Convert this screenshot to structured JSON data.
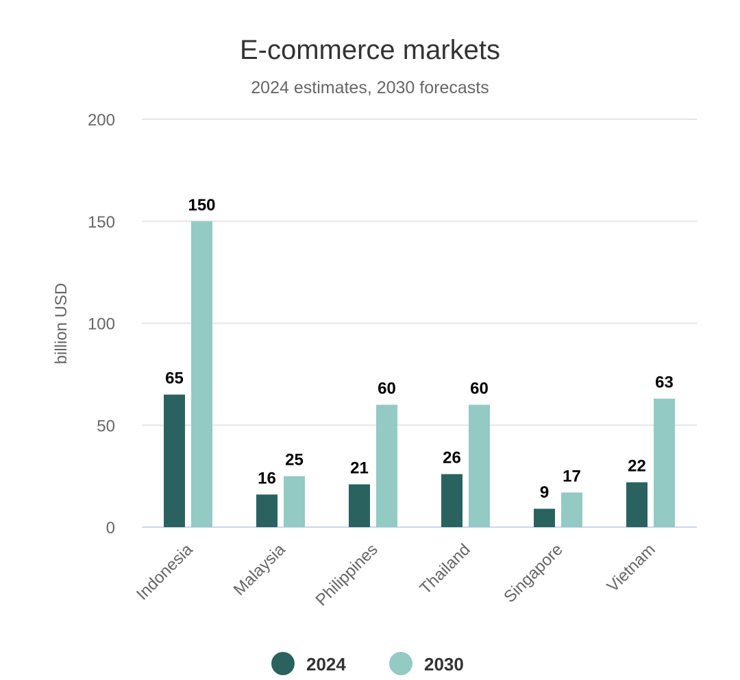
{
  "chart_data": {
    "type": "bar",
    "title": "E-commerce markets",
    "subtitle": "2024 estimates, 2030 forecasts",
    "ylabel": "billion USD",
    "xlabel": "",
    "ylim": [
      0,
      200
    ],
    "yticks": [
      0,
      50,
      100,
      150,
      200
    ],
    "categories": [
      "Indonesia",
      "Malaysia",
      "Philippines",
      "Thailand",
      "Singapore",
      "Vietnam"
    ],
    "series": [
      {
        "name": "2024",
        "color": "#2a625f",
        "values": [
          65,
          16,
          21,
          26,
          9,
          22
        ]
      },
      {
        "name": "2030",
        "color": "#93cac3",
        "values": [
          150,
          25,
          60,
          60,
          17,
          63
        ]
      }
    ],
    "grid": true,
    "legend": "bottom-center",
    "data_labels": true
  }
}
